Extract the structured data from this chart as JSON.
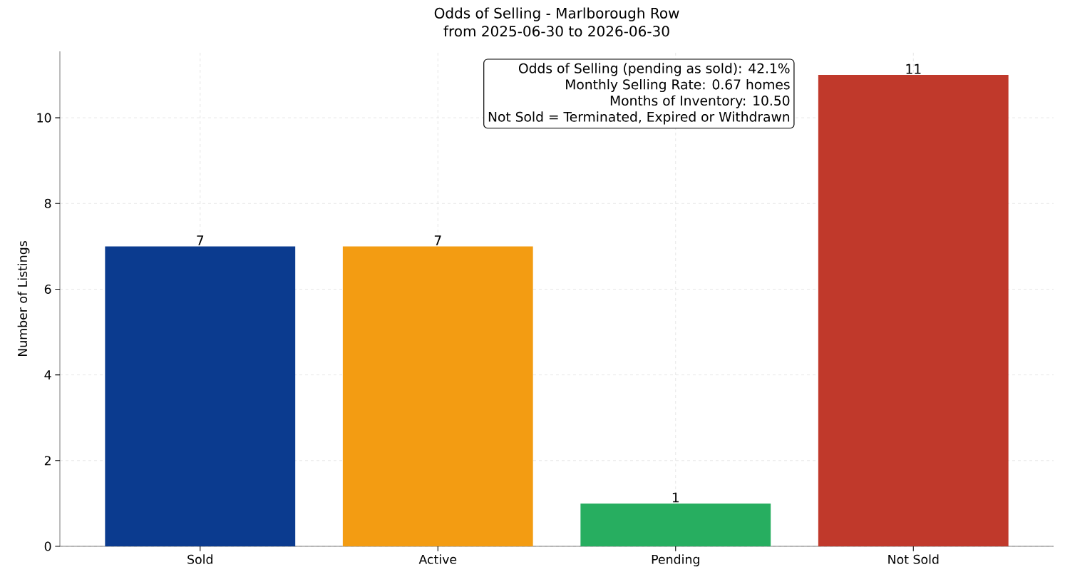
{
  "chart_data": {
    "type": "bar",
    "title": "Odds of Selling - Marlborough Row",
    "subtitle": "from 2025-06-30 to 2026-06-30",
    "ylabel": "Number of Listings",
    "categories": [
      "Sold",
      "Active",
      "Pending",
      "Not Sold"
    ],
    "values": [
      7,
      7,
      1,
      11
    ],
    "colors": [
      "#0b3b8f",
      "#f39c12",
      "#27ae60",
      "#c0392b"
    ],
    "ylim": [
      0,
      11.55
    ],
    "yticks": [
      0,
      2,
      4,
      6,
      8,
      10
    ],
    "grid": true,
    "data_labels": true,
    "annotations": [
      "Odds of Selling (pending as sold): 42.1%",
      "Monthly Selling Rate: 0.67 homes",
      "Months of Inventory: 10.50",
      "Not Sold = Terminated, Expired or Withdrawn"
    ]
  }
}
